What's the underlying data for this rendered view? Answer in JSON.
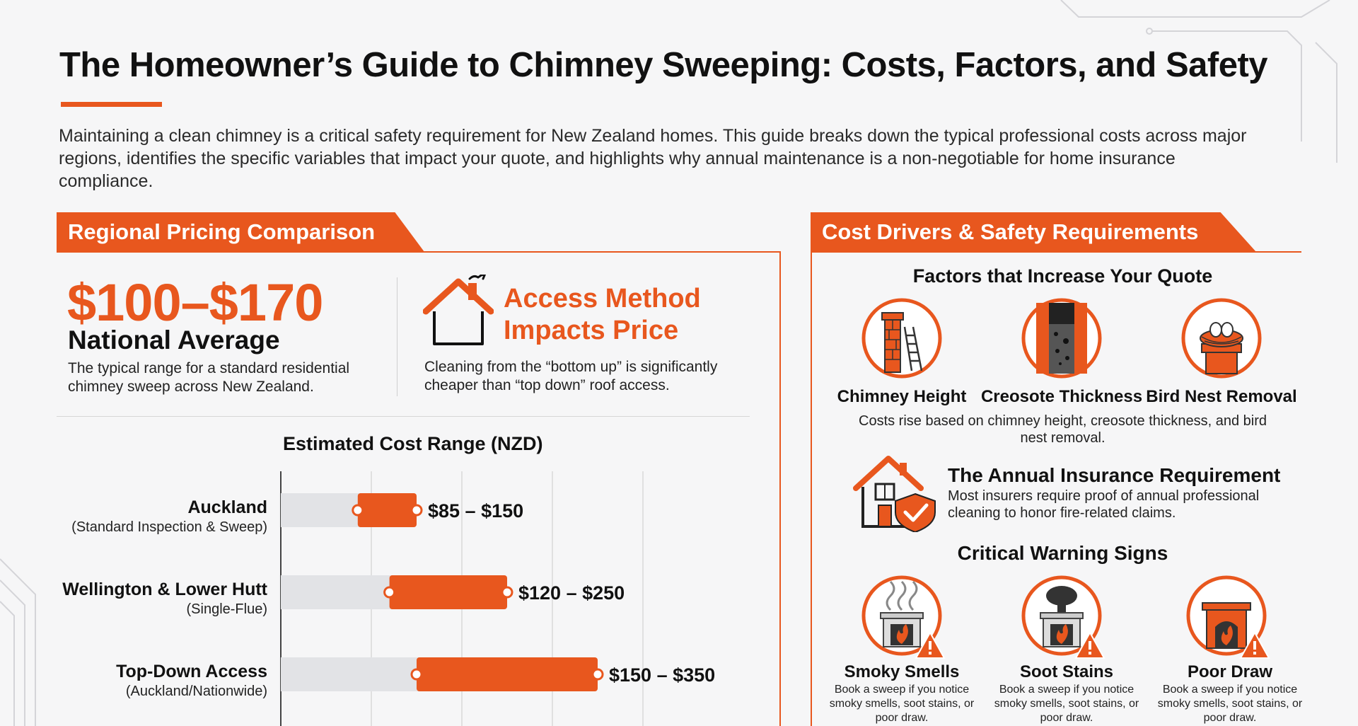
{
  "header": {
    "title": "The Homeowner’s Guide to Chimney Sweeping: Costs, Factors, and Safety",
    "intro": "Maintaining a clean chimney is a critical safety requirement for New Zealand homes. This guide breaks down the typical professional costs across major regions, identifies the specific variables that impact your quote, and highlights why annual maintenance is a non-negotiable for home insurance compliance."
  },
  "colors": {
    "accent": "#e8571e",
    "track": "#e2e3e6",
    "text": "#111111"
  },
  "left": {
    "section_title": "Regional Pricing Comparison",
    "national": {
      "range": "$100–$170",
      "label": "National Average",
      "desc": "The typical range for a standard residential chimney sweep across New Zealand."
    },
    "access": {
      "icon": "house-chimney-icon",
      "title": "Access Method Impacts Price",
      "desc": "Cleaning from the “bottom up” is significantly cheaper than “top down” roof access."
    }
  },
  "chart_data": {
    "type": "bar",
    "title": "Estimated Cost Range (NZD)",
    "xlim": [
      0,
      400
    ],
    "grid": true,
    "categories": [
      {
        "name": "Auckland",
        "sub": "(Standard Inspection & Sweep)",
        "low": 85,
        "high": 150,
        "label": "$85 – $150"
      },
      {
        "name": "Wellington & Lower Hutt",
        "sub": "(Single-Flue)",
        "low": 120,
        "high": 250,
        "label": "$120 – $250"
      },
      {
        "name": "Top-Down Access",
        "sub": "(Auckland/Nationwide)",
        "low": 150,
        "high": 350,
        "label": "$150 – $350"
      }
    ]
  },
  "right": {
    "section_title": "Cost Drivers & Safety Requirements",
    "factors_title": "Factors that Increase Your Quote",
    "factors": [
      {
        "label": "Chimney Height",
        "icon": "chimney-ladder-icon"
      },
      {
        "label": "Creosote Thickness",
        "icon": "creosote-flue-icon"
      },
      {
        "label": "Bird Nest Removal",
        "icon": "bird-nest-icon"
      }
    ],
    "factors_desc": "Costs rise based on chimney height, creosote thickness, and bird nest removal.",
    "insurance": {
      "icon": "house-shield-icon",
      "title": "The Annual Insurance Requirement",
      "desc": "Most insurers require proof of annual professional cleaning to honor fire-related claims."
    },
    "warning_title": "Critical Warning Signs",
    "warnings": [
      {
        "label": "Smoky Smells",
        "icon": "fireplace-smoke-icon",
        "desc": "Book a sweep if you notice smoky smells, soot stains, or poor draw."
      },
      {
        "label": "Soot Stains",
        "icon": "fireplace-soot-icon",
        "desc": "Book a sweep if you notice smoky smells, soot stains, or poor draw."
      },
      {
        "label": "Poor Draw",
        "icon": "fireplace-draw-icon",
        "desc": "Book a sweep if you notice smoky smells, soot stains, or poor draw."
      }
    ]
  }
}
